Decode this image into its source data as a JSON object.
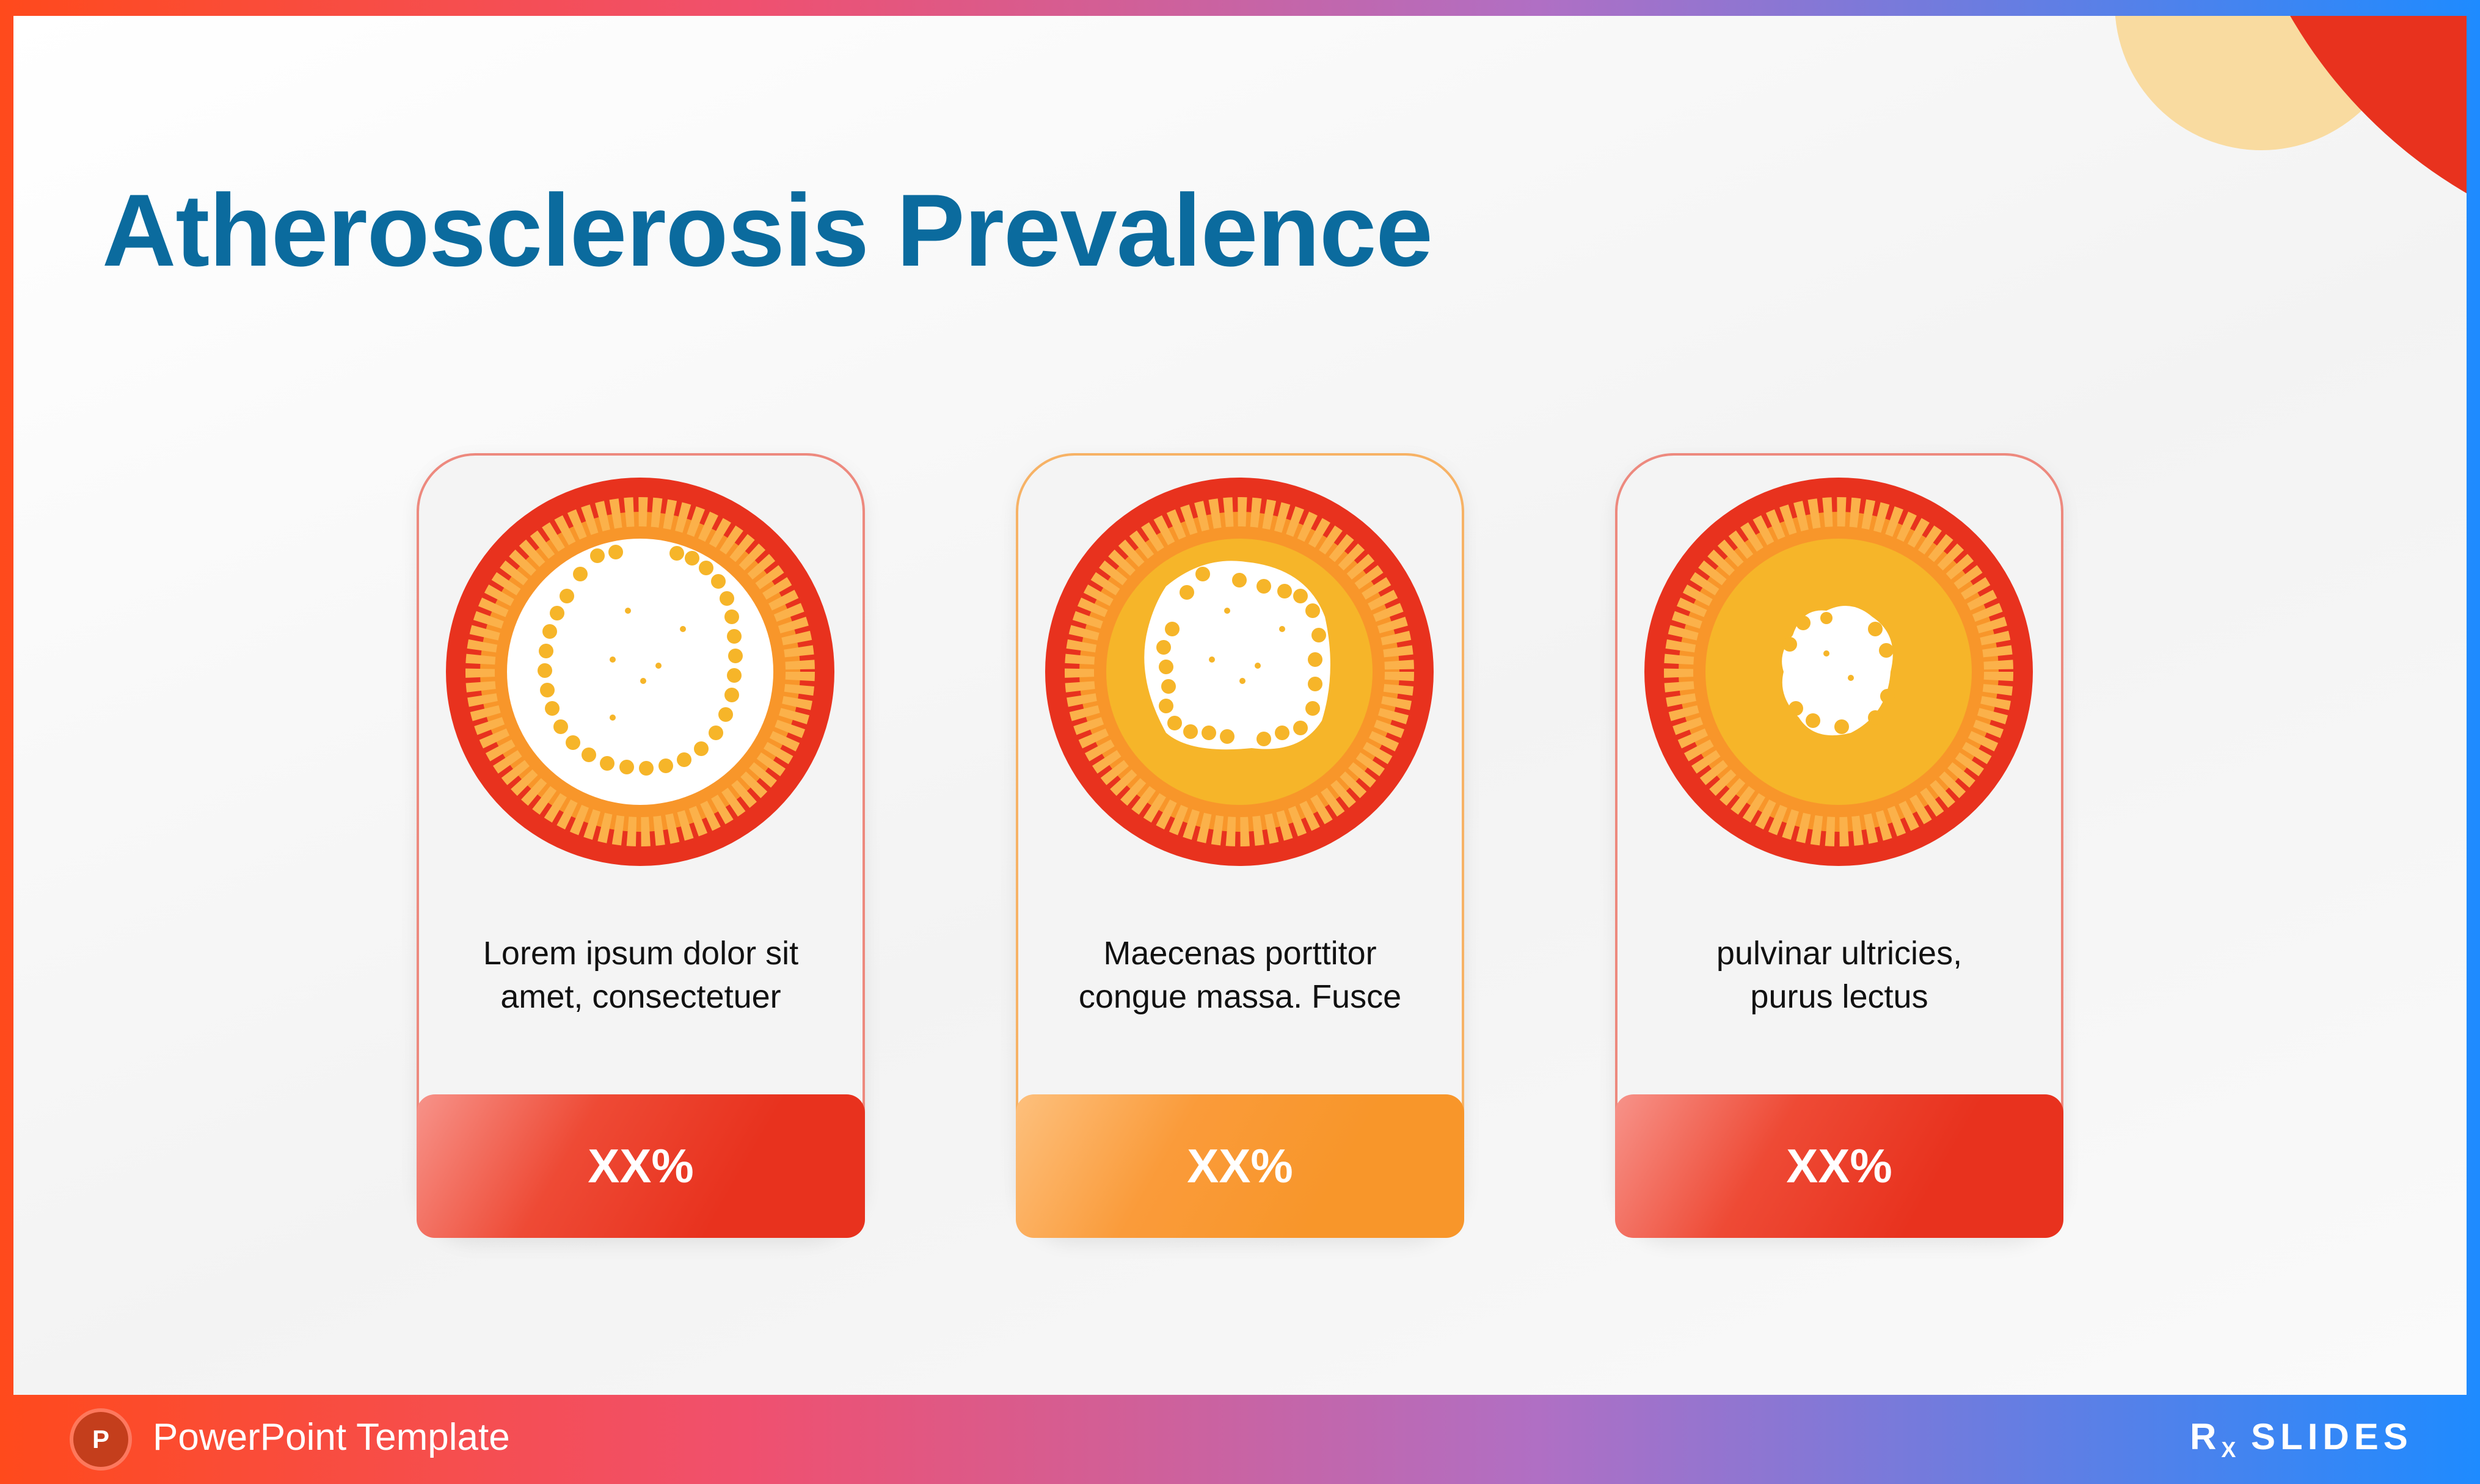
{
  "title": "Atherosclerosis Prevalence",
  "cards": [
    {
      "text_line1": "Lorem ipsum dolor sit",
      "text_line2": "amet, consectetuer",
      "stat": "XX%"
    },
    {
      "text_line1": "Maecenas porttitor",
      "text_line2": "congue massa. Fusce",
      "stat": "XX%"
    },
    {
      "text_line1": "pulvinar ultricies,",
      "text_line2": "purus lectus",
      "stat": "XX%"
    }
  ],
  "footer": {
    "label": "PowerPoint Template",
    "app_icon_letter": "P",
    "logo_r": "R",
    "logo_x": "X",
    "logo_text": "SLIDES"
  },
  "colors": {
    "title": "#0b6b9e",
    "red": "#e8321e",
    "orange": "#f8962a",
    "yellow": "#f6b529"
  },
  "icons": [
    "powerpoint-icon",
    "rx-slides-logo",
    "artery-cross-section-icon"
  ]
}
